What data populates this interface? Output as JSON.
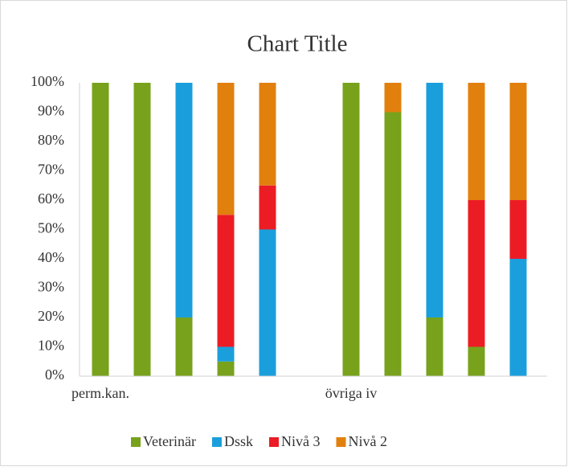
{
  "chart_data": {
    "type": "stacked_bar_100",
    "title": "Chart Title",
    "categories": [
      "perm.kan.",
      null,
      null,
      null,
      null,
      null,
      "övriga iv",
      null,
      null,
      null,
      null
    ],
    "series": [
      {
        "name": "Veterinär",
        "color": "#78a21c",
        "values": [
          100,
          100,
          20,
          5,
          0,
          null,
          100,
          90,
          20,
          10,
          0
        ]
      },
      {
        "name": "Dssk",
        "color": "#1a9fdc",
        "values": [
          0,
          0,
          80,
          5,
          50,
          null,
          0,
          0,
          80,
          0,
          40
        ]
      },
      {
        "name": "Nivå 3",
        "color": "#ec1c24",
        "values": [
          0,
          0,
          0,
          45,
          15,
          null,
          0,
          0,
          0,
          50,
          20
        ]
      },
      {
        "name": "Nivå 2",
        "color": "#e2800e",
        "values": [
          0,
          0,
          0,
          45,
          35,
          null,
          0,
          10,
          0,
          40,
          40
        ]
      }
    ],
    "ylim": [
      0,
      100
    ],
    "yticks": [
      {
        "value": 0,
        "label": "0%"
      },
      {
        "value": 10,
        "label": "10%"
      },
      {
        "value": 20,
        "label": "20%"
      },
      {
        "value": 30,
        "label": "30%"
      },
      {
        "value": 40,
        "label": "40%"
      },
      {
        "value": 50,
        "label": "50%"
      },
      {
        "value": 60,
        "label": "60%"
      },
      {
        "value": 70,
        "label": "70%"
      },
      {
        "value": 80,
        "label": "80%"
      },
      {
        "value": 90,
        "label": "90%"
      },
      {
        "value": 100,
        "label": "100%"
      }
    ],
    "legend": "bottom"
  }
}
